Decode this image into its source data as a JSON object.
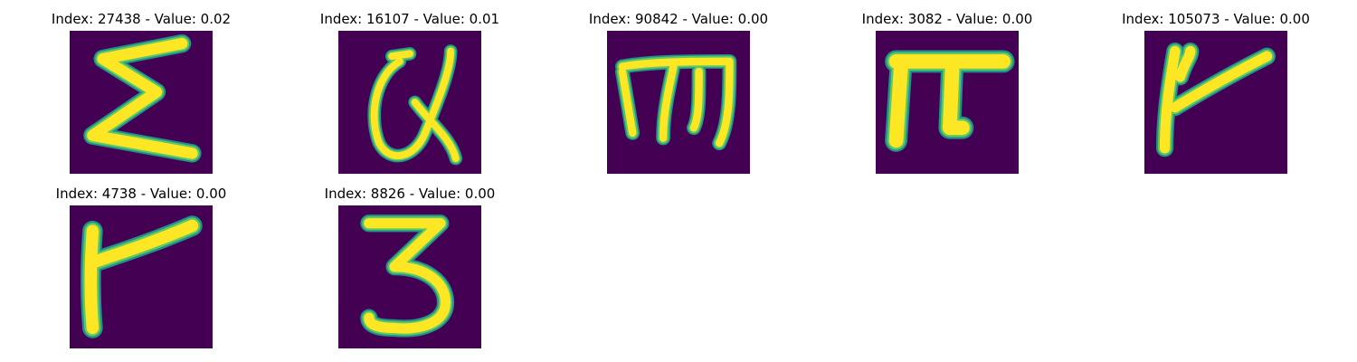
{
  "colors": {
    "background": "#440154",
    "stroke_edge": "#21918c",
    "stroke_mid": "#5ec962",
    "stroke_core": "#fde725"
  },
  "panels": [
    {
      "title": "Index: 27438 - Value: 0.02"
    },
    {
      "title": "Index: 16107 - Value: 0.01"
    },
    {
      "title": "Index: 90842 - Value: 0.00"
    },
    {
      "title": "Index: 3082 - Value: 0.00"
    },
    {
      "title": "Index: 105073 - Value: 0.00"
    },
    {
      "title": "Index: 4738 - Value: 0.00"
    },
    {
      "title": "Index: 8826 - Value: 0.00"
    }
  ]
}
